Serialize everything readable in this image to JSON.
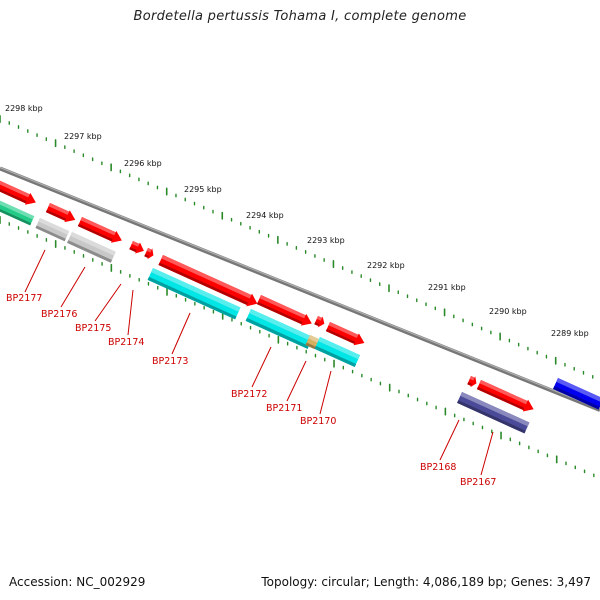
{
  "title": "Bordetella pertussis Tohama I, complete genome",
  "footer": {
    "accession": "Accession: NC_002929",
    "summary": "Topology: circular; Length: 4,086,189 bp; Genes: 3,497"
  },
  "colors": {
    "backbone": "#888888",
    "tick": "#2a8a2a",
    "gene_red": "#ff0000",
    "gene_grey": "#c8c8c8",
    "gene_cyan": "#00e5e5",
    "gene_blue": "#0000ee",
    "gene_navy": "#4a4a99",
    "gene_green": "#22cc88",
    "gene_tan": "#d4b060",
    "label": "#cc0000"
  },
  "scale_labels": [
    "2298 kbp",
    "2297 kbp",
    "2296 kbp",
    "2295 kbp",
    "2294 kbp",
    "2293 kbp",
    "2292 kbp",
    "2291 kbp",
    "2290 kbp",
    "2289 kbp"
  ],
  "gene_labels": [
    "BP2177",
    "BP2176",
    "BP2175",
    "BP2174",
    "BP2173",
    "BP2172",
    "BP2171",
    "BP2170",
    "BP2168",
    "BP2167"
  ]
}
